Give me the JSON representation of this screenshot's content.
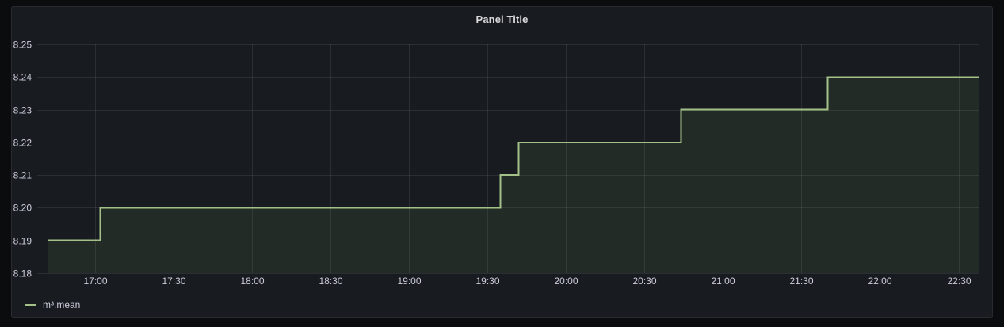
{
  "panel": {
    "title": "Panel Title"
  },
  "legend": {
    "items": [
      {
        "label": "m³.mean",
        "color": "#a3c088"
      }
    ]
  },
  "chart_data": {
    "type": "line",
    "interpolation": "step-after",
    "title": "Panel Title",
    "series": [
      {
        "name": "m³.mean",
        "color": "#a3c088",
        "fill": "rgba(140,190,120,0.10)",
        "points": [
          {
            "time": "16:42",
            "value": 8.19
          },
          {
            "time": "17:02",
            "value": 8.2
          },
          {
            "time": "19:35",
            "value": 8.21
          },
          {
            "time": "19:42",
            "value": 8.22
          },
          {
            "time": "20:44",
            "value": 8.23
          },
          {
            "time": "21:40",
            "value": 8.24
          },
          {
            "time": "22:38",
            "value": 8.24
          }
        ]
      }
    ],
    "x_axis": {
      "ticks": [
        "17:00",
        "17:30",
        "18:00",
        "18:30",
        "19:00",
        "19:30",
        "20:00",
        "20:30",
        "21:00",
        "21:30",
        "22:00",
        "22:30"
      ],
      "range": [
        "16:38",
        "22:38"
      ]
    },
    "y_axis": {
      "ticks": [
        "8.18",
        "8.19",
        "8.20",
        "8.21",
        "8.22",
        "8.23",
        "8.24",
        "8.25"
      ],
      "range": [
        8.18,
        8.25
      ]
    },
    "grid": true,
    "legend_position": "bottom-left"
  },
  "colors": {
    "page_background": "#0b0c0e",
    "panel_background": "#181b1f",
    "panel_border": "rgba(204,204,220,0.09)",
    "grid": "rgba(204,204,220,0.11)",
    "axis_text": "#ccccdc",
    "title_text": "#d8d9da",
    "series_line": "#a3c088",
    "series_fill": "rgba(140,190,120,0.10)"
  }
}
